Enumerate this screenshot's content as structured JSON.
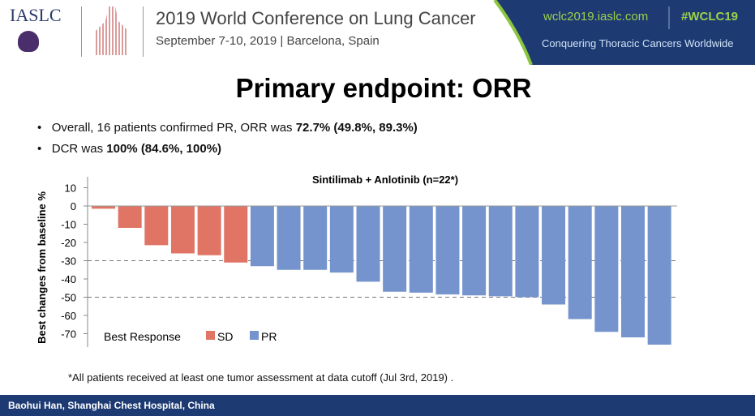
{
  "header": {
    "logo": "IASLC",
    "conference": "2019 World Conference on Lung Cancer",
    "date_location": "September 7-10, 2019 | Barcelona, Spain",
    "website": "wclc2019.iaslc.com",
    "hashtag": "#WCLC19",
    "slogan": "Conquering Thoracic Cancers Worldwide",
    "band_color": "#1d3a73"
  },
  "slide": {
    "title": "Primary endpoint: ORR",
    "bullets": [
      {
        "text": "Overall, 16 patients confirmed PR, ORR was ",
        "bold": "72.7% (49.8%, 89.3%)"
      },
      {
        "text": "DCR was ",
        "bold": "100% (84.6%, 100%)"
      }
    ],
    "footnote": "*All patients received at least one tumor assessment at data cutoff (Jul 3rd, 2019) .",
    "footer": "Baohui Han, Shanghai Chest Hospital, China"
  },
  "chart_data": {
    "type": "bar",
    "title": "Sintilimab + Anlotinib (n=22*)",
    "ylabel": "Best changes from baseline %",
    "xlabel": "",
    "ylim": [
      -78,
      15
    ],
    "yticks": [
      10,
      0,
      -10,
      -20,
      -30,
      -40,
      -50,
      -60,
      -70
    ],
    "reference_lines": [
      -30,
      -50
    ],
    "legend": {
      "title": "Best Response",
      "placement": "bottom-left",
      "entries": [
        {
          "name": "SD",
          "color": "#e07566"
        },
        {
          "name": "PR",
          "color": "#7593cc"
        }
      ]
    },
    "values": [
      -1.5,
      -12,
      -21.5,
      -26,
      -27,
      -31,
      -33,
      -35,
      -35,
      -36.5,
      -41.5,
      -47,
      -47.5,
      -48.5,
      -49,
      -49.5,
      -50,
      -54,
      -62,
      -69,
      -72,
      -76
    ],
    "response": [
      "SD",
      "SD",
      "SD",
      "SD",
      "SD",
      "SD",
      "PR",
      "PR",
      "PR",
      "PR",
      "PR",
      "PR",
      "PR",
      "PR",
      "PR",
      "PR",
      "PR",
      "PR",
      "PR",
      "PR",
      "PR",
      "PR"
    ]
  }
}
